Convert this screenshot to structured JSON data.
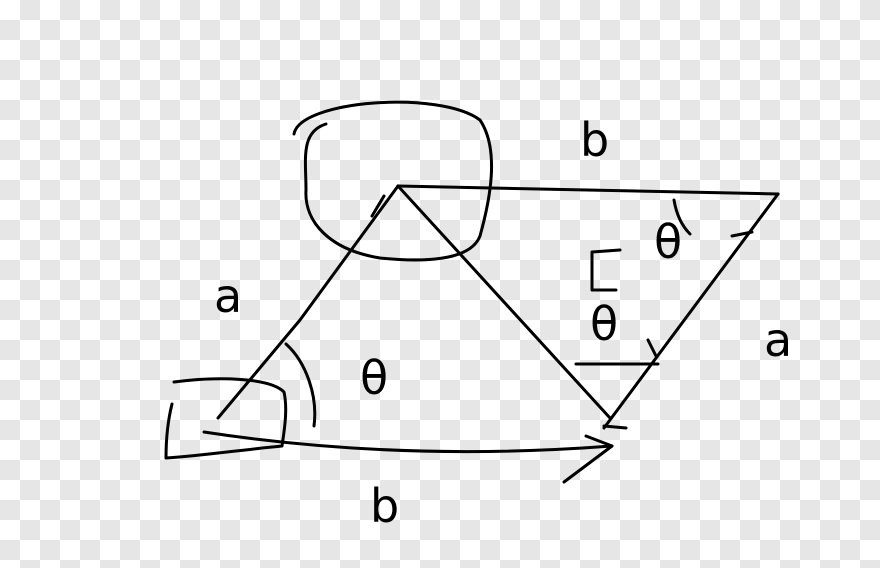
{
  "diagram": {
    "labels": {
      "left_side": "a",
      "bottom_side": "b",
      "top_side": "b",
      "right_side": "a",
      "center_angle": "θ",
      "right_angle": "θ"
    },
    "stroke_color": "#000000"
  }
}
